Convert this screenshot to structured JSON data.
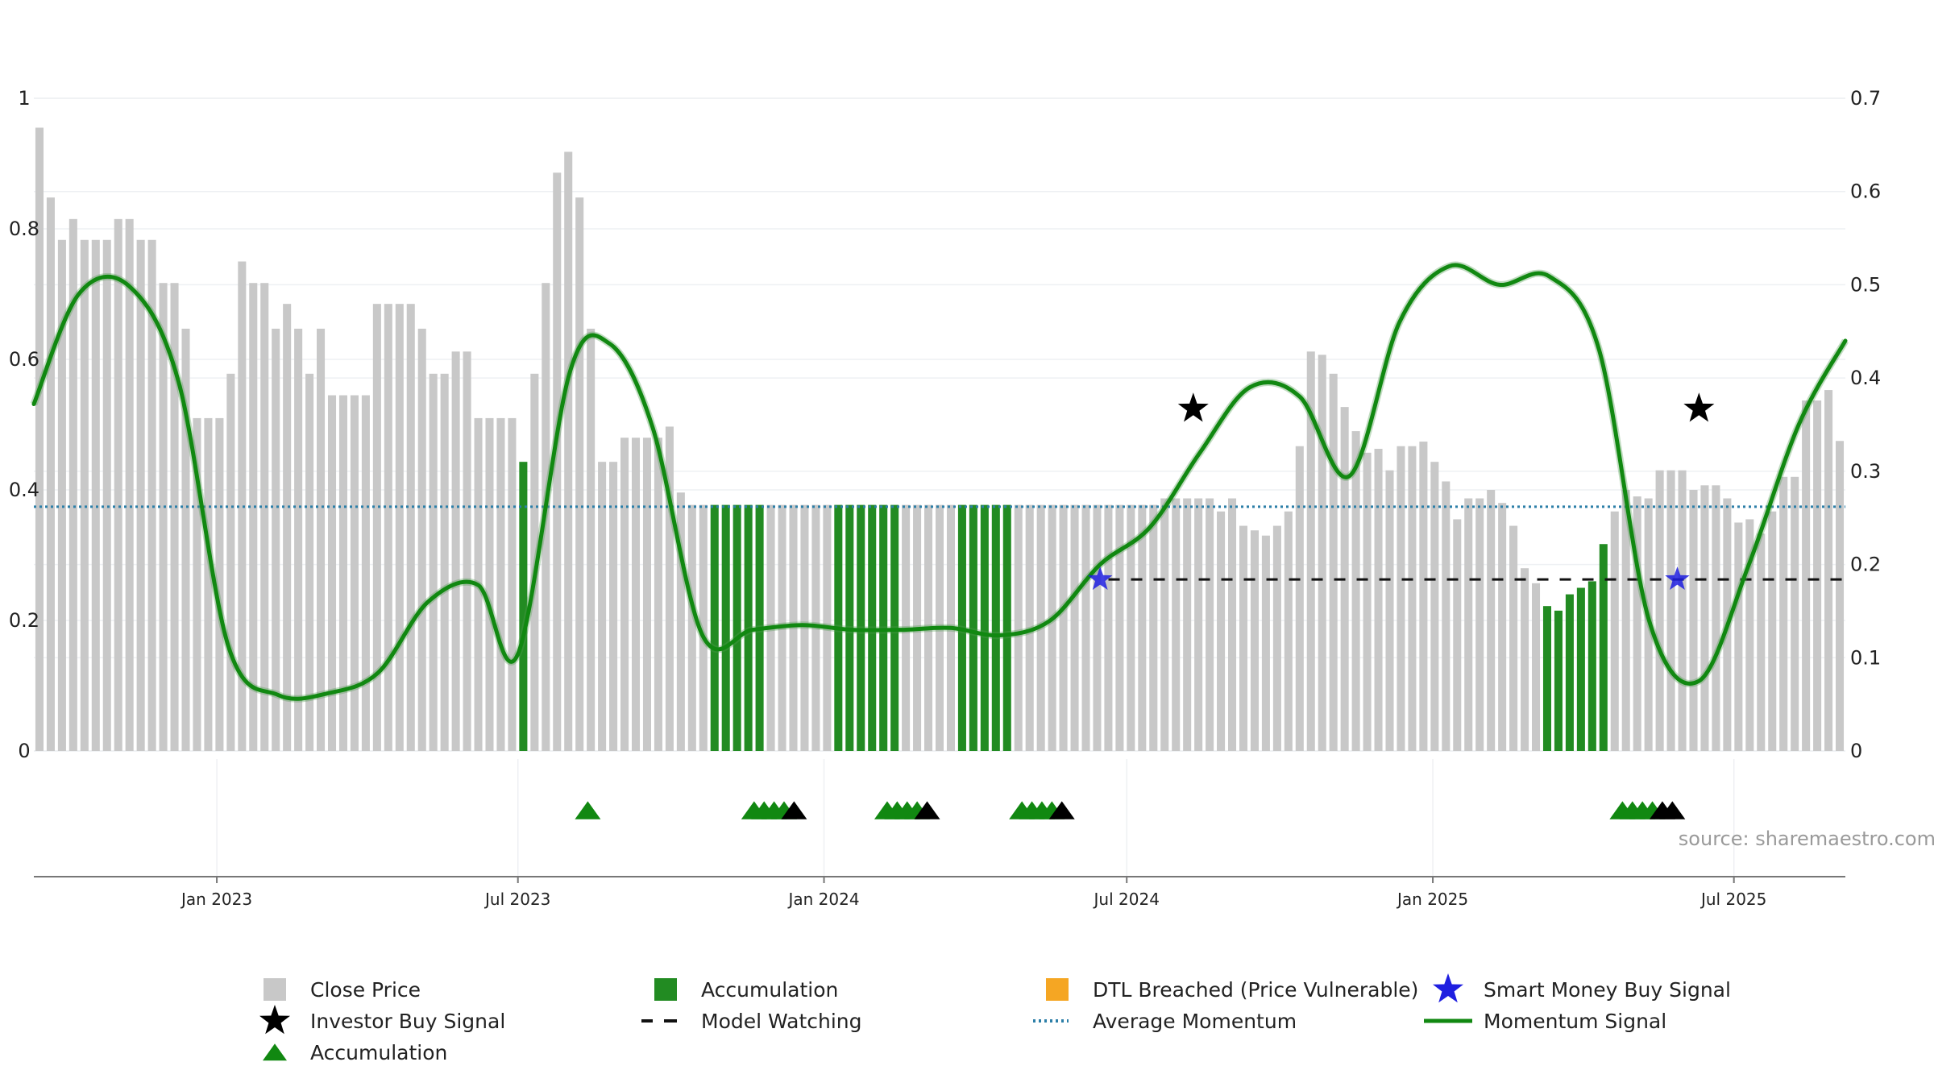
{
  "chart_data": {
    "type": "bar",
    "source": "source: sharemaestro.com",
    "colors": {
      "price_bar": "#c8c8c8",
      "accumulation_bar": "#228b22",
      "momentum": "#118811",
      "momentum_faded": "#4e9a4e",
      "average_momentum": "#2c7fa8",
      "model_watching": "#111111",
      "smart_money": "#1f1fe0",
      "investor_star": "#000000",
      "dtl": "#f5a623",
      "accum_marker": "#118811",
      "accum_marker_black": "#000000"
    },
    "left_axis": {
      "ylim": [
        0,
        1
      ],
      "ticks": [
        "0",
        "0.2",
        "0.4",
        "0.6",
        "0.8",
        "1"
      ],
      "tick_values": [
        0,
        0.2,
        0.4,
        0.6,
        0.8,
        1
      ]
    },
    "right_axis": {
      "ylim": [
        0,
        0.7
      ],
      "ticks": [
        "0",
        "0.1",
        "0.2",
        "0.3",
        "0.4",
        "0.5",
        "0.6",
        "0.7"
      ],
      "tick_values": [
        0,
        0.1,
        0.2,
        0.3,
        0.4,
        0.5,
        0.6,
        0.7
      ]
    },
    "x_axis": {
      "start": "2022-09-13",
      "end": "2025-09-06",
      "tick_labels": [
        "Jan 2023",
        "Jul 2023",
        "Jan 2024",
        "Jul 2024",
        "Jan 2025",
        "Jul 2025"
      ],
      "tick_dates": [
        "2023-01-01",
        "2023-07-01",
        "2024-01-01",
        "2024-07-01",
        "2025-01-01",
        "2025-07-01"
      ]
    },
    "bars": {
      "close_price": [
        0.955,
        0.848,
        0.783,
        0.815,
        0.783,
        0.783,
        0.783,
        0.815,
        0.815,
        0.783,
        0.783,
        0.717,
        0.717,
        0.647,
        0.51,
        0.51,
        0.51,
        0.578,
        0.75,
        0.717,
        0.717,
        0.647,
        0.685,
        0.647,
        0.578,
        0.647,
        0.545,
        0.545,
        0.545,
        0.545,
        0.685,
        0.685,
        0.685,
        0.685,
        0.647,
        0.578,
        0.578,
        0.612,
        0.612,
        0.51,
        0.51,
        0.51,
        0.51,
        0.443,
        0.578,
        0.717,
        0.886,
        0.918,
        0.848,
        0.647,
        0.443,
        0.443,
        0.48,
        0.48,
        0.48,
        0.48,
        0.497,
        0.396,
        0.377,
        0.377,
        0.377,
        0.377,
        0.377,
        0.377,
        0.377,
        0.377,
        0.377,
        0.377,
        0.377,
        0.377,
        0.377,
        0.377,
        0.377,
        0.377,
        0.377,
        0.377,
        0.377,
        0.377,
        0.377,
        0.377,
        0.377,
        0.377,
        0.377,
        0.377,
        0.377,
        0.377,
        0.377,
        0.377,
        0.377,
        0.377,
        0.377,
        0.377,
        0.377,
        0.377,
        0.377,
        0.377,
        0.377,
        0.377,
        0.377,
        0.377,
        0.387,
        0.387,
        0.387,
        0.387,
        0.387,
        0.367,
        0.387,
        0.345,
        0.338,
        0.33,
        0.345,
        0.367,
        0.467,
        0.612,
        0.607,
        0.578,
        0.527,
        0.49,
        0.457,
        0.463,
        0.43,
        0.467,
        0.467,
        0.474,
        0.443,
        0.413,
        0.355,
        0.387,
        0.387,
        0.4,
        0.38,
        0.345,
        0.28,
        0.257,
        0.222,
        0.215,
        0.24,
        0.25,
        0.26,
        0.317,
        0.367,
        0.4,
        0.39,
        0.387,
        0.43,
        0.43,
        0.43,
        0.4,
        0.407,
        0.407,
        0.387,
        0.35,
        0.355,
        0.333,
        0.367,
        0.42,
        0.42,
        0.537,
        0.537,
        0.553,
        0.475
      ],
      "accumulation_indices": [
        43,
        60,
        61,
        62,
        63,
        64,
        71,
        72,
        73,
        74,
        75,
        76,
        82,
        83,
        84,
        85,
        86,
        134,
        135,
        136,
        137,
        138,
        139
      ]
    },
    "momentum_signal": {
      "x": [
        "2022-09-13",
        "2022-10-10",
        "2022-11-09",
        "2022-12-09",
        "2023-01-08",
        "2023-02-07",
        "2023-03-09",
        "2023-04-08",
        "2023-05-08",
        "2023-06-07",
        "2023-07-01",
        "2023-08-01",
        "2023-08-25",
        "2023-09-20",
        "2023-10-20",
        "2023-11-19",
        "2023-12-19",
        "2024-01-18",
        "2024-02-17",
        "2024-03-17",
        "2024-04-16",
        "2024-05-16",
        "2024-06-15",
        "2024-07-15",
        "2024-08-14",
        "2024-09-13",
        "2024-10-13",
        "2024-11-12",
        "2024-12-12",
        "2025-01-11",
        "2025-02-10",
        "2025-03-12",
        "2025-04-11",
        "2025-05-11",
        "2025-06-10",
        "2025-07-10",
        "2025-08-09",
        "2025-09-06"
      ],
      "y": [
        0.372,
        0.49,
        0.499,
        0.396,
        0.112,
        0.06,
        0.062,
        0.084,
        0.16,
        0.178,
        0.104,
        0.405,
        0.437,
        0.347,
        0.124,
        0.13,
        0.135,
        0.13,
        0.13,
        0.132,
        0.124,
        0.14,
        0.2,
        0.24,
        0.32,
        0.39,
        0.38,
        0.295,
        0.46,
        0.52,
        0.5,
        0.509,
        0.43,
        0.14,
        0.075,
        0.2,
        0.35,
        0.44
      ]
    },
    "average_momentum": 0.262,
    "model_watching": {
      "y": 0.184,
      "segments": [
        [
          "2024-06-20",
          "2025-09-06"
        ]
      ]
    },
    "investor_buy_signal": [
      {
        "x": "2024-08-10",
        "y": 0.367
      },
      {
        "x": "2025-06-10",
        "y": 0.367
      }
    ],
    "smart_money_buy_signal": [
      {
        "x": "2024-06-15",
        "y": 0.184
      },
      {
        "x": "2025-05-28",
        "y": 0.184
      }
    ],
    "accumulation_markers": [
      {
        "x": "2023-08-12",
        "color": "green"
      },
      {
        "x": "2023-11-20",
        "color": "green"
      },
      {
        "x": "2023-11-26",
        "color": "green"
      },
      {
        "x": "2023-12-02",
        "color": "green"
      },
      {
        "x": "2023-12-08",
        "color": "green"
      },
      {
        "x": "2023-12-14",
        "color": "black"
      },
      {
        "x": "2024-02-08",
        "color": "green"
      },
      {
        "x": "2024-02-14",
        "color": "green"
      },
      {
        "x": "2024-02-20",
        "color": "green"
      },
      {
        "x": "2024-02-26",
        "color": "green"
      },
      {
        "x": "2024-03-03",
        "color": "black"
      },
      {
        "x": "2024-04-29",
        "color": "green"
      },
      {
        "x": "2024-05-05",
        "color": "green"
      },
      {
        "x": "2024-05-11",
        "color": "green"
      },
      {
        "x": "2024-05-17",
        "color": "green"
      },
      {
        "x": "2024-05-23",
        "color": "black"
      },
      {
        "x": "2025-04-25",
        "color": "green"
      },
      {
        "x": "2025-05-01",
        "color": "green"
      },
      {
        "x": "2025-05-07",
        "color": "green"
      },
      {
        "x": "2025-05-13",
        "color": "green"
      },
      {
        "x": "2025-05-19",
        "color": "black"
      },
      {
        "x": "2025-05-25",
        "color": "black"
      }
    ],
    "legend": [
      {
        "key": "close_price",
        "label": "Close Price",
        "symbol": "square-grey"
      },
      {
        "key": "accumulation_bar",
        "label": "Accumulation",
        "symbol": "square-green"
      },
      {
        "key": "dtl",
        "label": "DTL Breached (Price Vulnerable)",
        "symbol": "square-orange"
      },
      {
        "key": "smart_money",
        "label": "Smart Money Buy Signal",
        "symbol": "star-blue"
      },
      {
        "key": "investor",
        "label": "Investor Buy Signal",
        "symbol": "star-black"
      },
      {
        "key": "model_watching",
        "label": "Model Watching",
        "symbol": "dash-black"
      },
      {
        "key": "average_momentum",
        "label": "Average Momentum",
        "symbol": "dotted-blue"
      },
      {
        "key": "momentum",
        "label": "Momentum Signal",
        "symbol": "line-green"
      },
      {
        "key": "accumulation_marker",
        "label": "Accumulation",
        "symbol": "triangle-green"
      }
    ]
  }
}
